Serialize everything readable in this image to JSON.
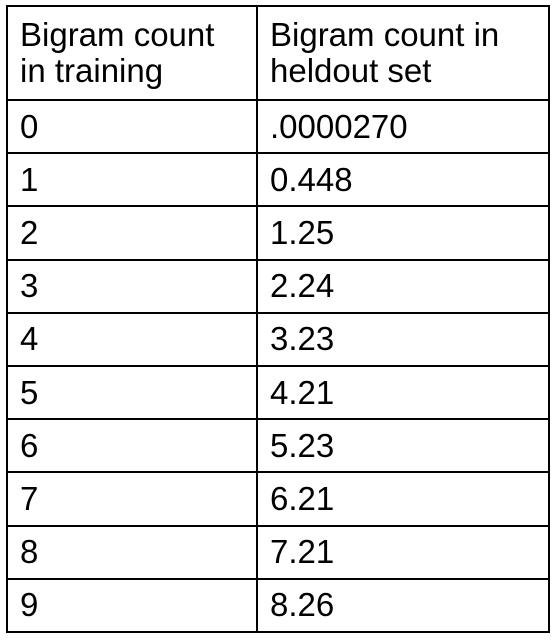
{
  "table": {
    "headers": [
      [
        "Bigram count",
        "in training"
      ],
      [
        "Bigram count in",
        "heldout set"
      ]
    ],
    "rows": [
      [
        "0",
        ".0000270"
      ],
      [
        "1",
        "0.448"
      ],
      [
        "2",
        "1.25"
      ],
      [
        "3",
        "2.24"
      ],
      [
        "4",
        "3.23"
      ],
      [
        "5",
        "4.21"
      ],
      [
        "6",
        "5.23"
      ],
      [
        "7",
        "6.21"
      ],
      [
        "8",
        "7.21"
      ],
      [
        "9",
        "8.26"
      ]
    ]
  }
}
